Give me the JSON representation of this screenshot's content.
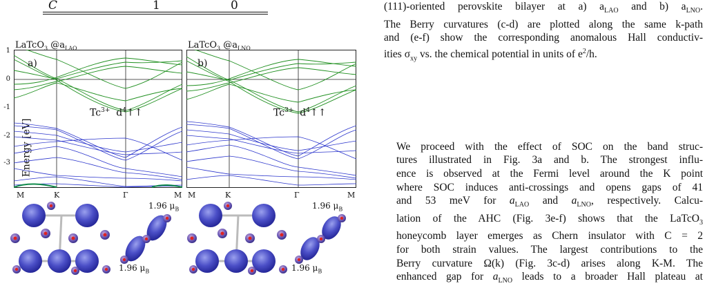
{
  "table_fragment": {
    "c1": "C",
    "c2": "1",
    "c3": "0"
  },
  "figure": {
    "panels": [
      {
        "title_pre": "LaTcO",
        "title_mid": "3",
        "title_post": " @a",
        "title_sub": "LAO",
        "letter": "a)"
      },
      {
        "title_pre": "LaTcO",
        "title_mid": "3",
        "title_post": " @a",
        "title_sub": "LNO",
        "letter": "b)"
      }
    ],
    "tc_label": {
      "ion": "Tc",
      "ion_charge": "3+",
      "config": "d",
      "config_exp": "4",
      "spins": "↑↑"
    },
    "y_axis_label": "Energy [eV]",
    "y_ticks": [
      "1",
      "0",
      "-1",
      "-2",
      "-3"
    ],
    "k_points": [
      "M",
      "K",
      "Γ",
      "M"
    ],
    "moment_label": {
      "value": "1.96 μ",
      "sub": "B"
    }
  },
  "caption": {
    "lines": [
      "(111)-oriented perovskite bilayer at a) a",
      "The Berry curvatures (c-d) are plotted along the same k-path",
      "and (e-f) show the corresponding anomalous Hall conductiv-",
      "ities σ"
    ],
    "l1_sub1": "LAO",
    "l1_mid": " and b) a",
    "l1_sub2": "LNO",
    "l1_end": ".",
    "l4_sub": "xy",
    "l4_end": " vs. the chemical potential in units of e",
    "l4_sup": "2",
    "l4_tail": "/h."
  },
  "body": {
    "lines": [
      "We proceed with the effect of SOC on the band struc-",
      "tures illustrated in Fig. 3a and b. The strongest influ-",
      "ence is observed at the Fermi level around the K point",
      "where SOC induces anti-crossings and opens gaps of 41",
      "and 53 meV for ",
      "lation of the AHC (Fig. 3e-f) shows that the LaTcO",
      "honeycomb layer emerges as Chern insulator with C = 2",
      "for both strain values. The largest contributions to the",
      "Berry curvature Ω(k) (Fig. 3c-d) arises along K-M. The",
      "enhanced gap for "
    ],
    "l5_a1": "a",
    "l5_sub1": "LAO",
    "l5_and": " and ",
    "l5_a2": "a",
    "l5_sub2": "LNO",
    "l5_end": ", respectively. Calcu-",
    "l6_sub": "3",
    "l10_a": "a",
    "l10_sub": "LNO",
    "l10_end": " leads to a broader Hall plateau at"
  }
}
